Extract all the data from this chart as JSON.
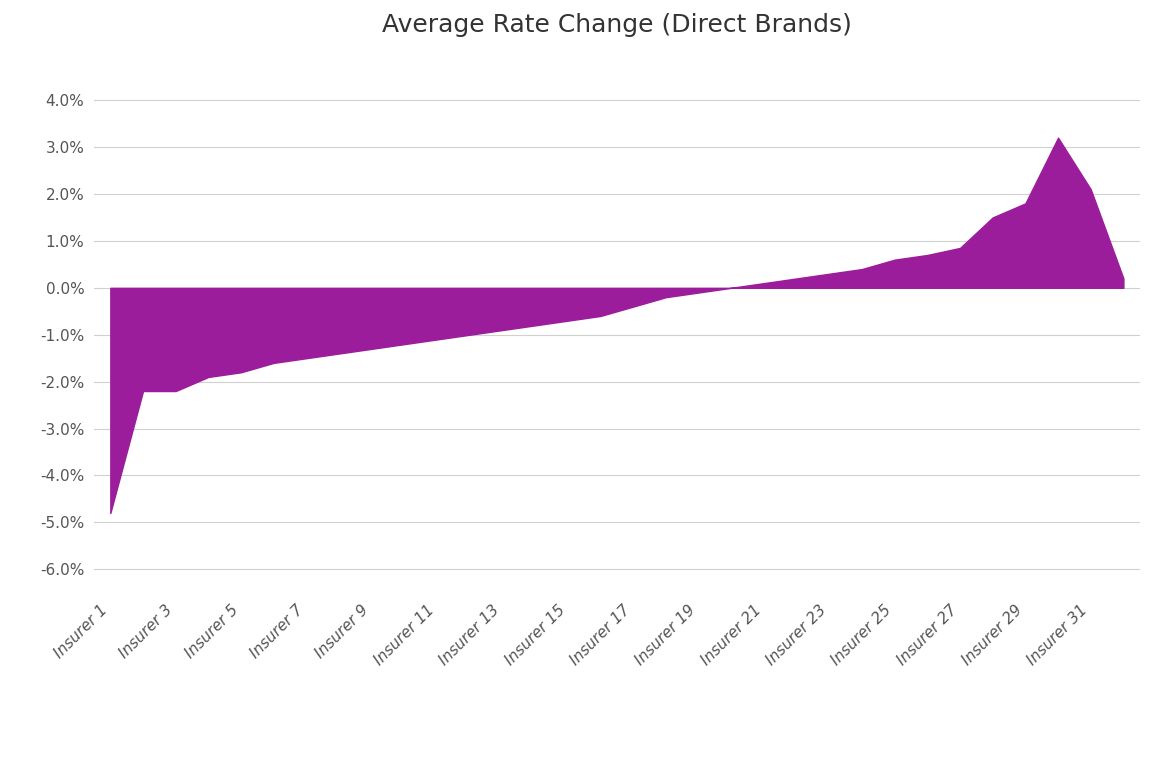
{
  "title": "Average Rate Change (Direct Brands)",
  "x_labels": [
    "Insurer 1",
    "Insurer 3",
    "Insurer 5",
    "Insurer 7",
    "Insurer 9",
    "Insurer 11",
    "Insurer 13",
    "Insurer 15",
    "Insurer 17",
    "Insurer 19",
    "Insurer 21",
    "Insurer 23",
    "Insurer 25",
    "Insurer 27",
    "Insurer 29",
    "Insurer 31"
  ],
  "full_values": [
    -0.048,
    -0.022,
    -0.022,
    -0.019,
    -0.018,
    -0.016,
    -0.015,
    -0.014,
    -0.013,
    -0.012,
    -0.011,
    -0.01,
    -0.009,
    -0.008,
    -0.007,
    -0.006,
    -0.004,
    -0.002,
    -0.001,
    0.0,
    0.001,
    0.002,
    0.003,
    0.004,
    0.006,
    0.007,
    0.0085,
    0.015,
    0.018,
    0.032,
    0.021,
    0.002
  ],
  "fill_color": "#9B1D9B",
  "line_color": "#9B1D9B",
  "background_color": "#ffffff",
  "grid_color": "#d0d0d0",
  "ylim": [
    -0.065,
    0.05
  ],
  "yticks": [
    -0.06,
    -0.05,
    -0.04,
    -0.03,
    -0.02,
    -0.01,
    0.0,
    0.01,
    0.02,
    0.03,
    0.04
  ],
  "title_fontsize": 18,
  "tick_label_fontsize": 11,
  "label_color": "#555555",
  "title_color": "#333333"
}
